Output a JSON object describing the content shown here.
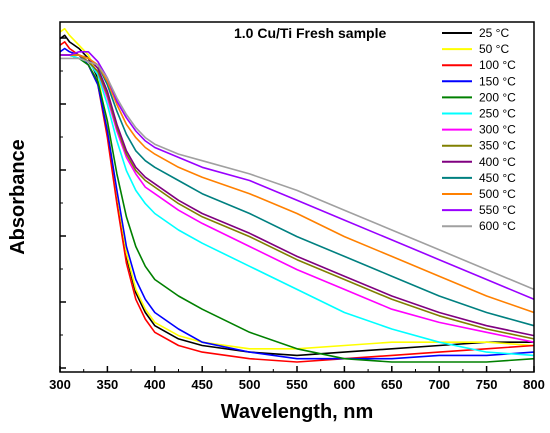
{
  "chart_data": {
    "type": "line",
    "title": "1.0 Cu/Ti Fresh sample",
    "xlabel": "Wavelength, nm",
    "ylabel": "Absorbance",
    "xlim": [
      300,
      800
    ],
    "ylim": [
      0,
      1
    ],
    "xticks": [
      300,
      350,
      400,
      450,
      500,
      550,
      600,
      650,
      700,
      750,
      800
    ],
    "y_tick_labels_shown": false,
    "grid": false,
    "legend_position": "top-right",
    "series": [
      {
        "name": "25 °C",
        "color": "#000000",
        "x": [
          300,
          305,
          310,
          320,
          330,
          340,
          350,
          360,
          370,
          380,
          390,
          400,
          425,
          450,
          500,
          550,
          600,
          650,
          700,
          750,
          800
        ],
        "y": [
          0.98,
          0.99,
          0.97,
          0.95,
          0.92,
          0.86,
          0.7,
          0.5,
          0.32,
          0.21,
          0.15,
          0.11,
          0.07,
          0.05,
          0.03,
          0.02,
          0.03,
          0.04,
          0.05,
          0.06,
          0.06
        ]
      },
      {
        "name": "50 °C",
        "color": "#ffff00",
        "x": [
          300,
          305,
          310,
          320,
          330,
          340,
          350,
          360,
          370,
          380,
          390,
          400,
          425,
          450,
          500,
          550,
          600,
          650,
          700,
          750,
          800
        ],
        "y": [
          1.0,
          1.01,
          0.99,
          0.96,
          0.93,
          0.87,
          0.71,
          0.51,
          0.33,
          0.22,
          0.16,
          0.12,
          0.08,
          0.06,
          0.04,
          0.04,
          0.05,
          0.06,
          0.06,
          0.06,
          0.05
        ]
      },
      {
        "name": "100 °C",
        "color": "#ff0000",
        "x": [
          300,
          305,
          310,
          320,
          330,
          340,
          350,
          360,
          370,
          380,
          390,
          400,
          425,
          450,
          500,
          550,
          600,
          650,
          700,
          750,
          800
        ],
        "y": [
          0.96,
          0.97,
          0.95,
          0.93,
          0.9,
          0.84,
          0.68,
          0.48,
          0.3,
          0.19,
          0.13,
          0.09,
          0.05,
          0.03,
          0.01,
          0.0,
          0.01,
          0.02,
          0.03,
          0.04,
          0.05
        ]
      },
      {
        "name": "150 °C",
        "color": "#0000ff",
        "x": [
          300,
          305,
          310,
          320,
          330,
          340,
          350,
          360,
          370,
          380,
          390,
          400,
          425,
          450,
          500,
          550,
          600,
          650,
          700,
          750,
          800
        ],
        "y": [
          0.94,
          0.95,
          0.94,
          0.93,
          0.9,
          0.84,
          0.7,
          0.52,
          0.35,
          0.25,
          0.19,
          0.15,
          0.1,
          0.06,
          0.03,
          0.01,
          0.01,
          0.01,
          0.02,
          0.02,
          0.03
        ]
      },
      {
        "name": "200 °C",
        "color": "#008000",
        "x": [
          300,
          310,
          320,
          330,
          340,
          350,
          360,
          370,
          380,
          390,
          400,
          425,
          450,
          500,
          550,
          600,
          650,
          700,
          750,
          800
        ],
        "y": [
          0.93,
          0.93,
          0.92,
          0.9,
          0.85,
          0.73,
          0.57,
          0.44,
          0.35,
          0.29,
          0.25,
          0.2,
          0.16,
          0.09,
          0.04,
          0.01,
          0.0,
          0.0,
          0.0,
          0.01
        ]
      },
      {
        "name": "250 °C",
        "color": "#00ffff",
        "x": [
          300,
          310,
          320,
          330,
          340,
          350,
          360,
          370,
          380,
          390,
          400,
          425,
          450,
          500,
          550,
          600,
          650,
          700,
          750,
          800
        ],
        "y": [
          0.93,
          0.93,
          0.92,
          0.91,
          0.87,
          0.78,
          0.67,
          0.58,
          0.52,
          0.48,
          0.45,
          0.4,
          0.36,
          0.29,
          0.22,
          0.15,
          0.1,
          0.06,
          0.03,
          0.02
        ]
      },
      {
        "name": "300 °C",
        "color": "#ff00ff",
        "x": [
          300,
          310,
          320,
          330,
          340,
          350,
          360,
          370,
          380,
          390,
          400,
          425,
          450,
          500,
          550,
          600,
          650,
          700,
          750,
          800
        ],
        "y": [
          0.93,
          0.93,
          0.93,
          0.91,
          0.88,
          0.8,
          0.7,
          0.62,
          0.57,
          0.53,
          0.51,
          0.46,
          0.42,
          0.35,
          0.28,
          0.22,
          0.16,
          0.12,
          0.09,
          0.06
        ]
      },
      {
        "name": "350 °C",
        "color": "#808000",
        "x": [
          300,
          310,
          320,
          330,
          340,
          350,
          360,
          370,
          380,
          390,
          400,
          425,
          450,
          500,
          550,
          600,
          650,
          700,
          750,
          800
        ],
        "y": [
          0.93,
          0.93,
          0.93,
          0.91,
          0.88,
          0.81,
          0.71,
          0.63,
          0.58,
          0.55,
          0.53,
          0.48,
          0.44,
          0.38,
          0.31,
          0.25,
          0.19,
          0.14,
          0.1,
          0.07
        ]
      },
      {
        "name": "400 °C",
        "color": "#800080",
        "x": [
          300,
          310,
          320,
          330,
          340,
          350,
          360,
          370,
          380,
          390,
          400,
          425,
          450,
          500,
          550,
          600,
          650,
          700,
          750,
          800
        ],
        "y": [
          0.93,
          0.93,
          0.93,
          0.92,
          0.89,
          0.82,
          0.72,
          0.64,
          0.59,
          0.56,
          0.54,
          0.49,
          0.45,
          0.39,
          0.32,
          0.26,
          0.2,
          0.15,
          0.11,
          0.08
        ]
      },
      {
        "name": "450 °C",
        "color": "#008080",
        "x": [
          300,
          310,
          320,
          330,
          340,
          350,
          360,
          370,
          380,
          390,
          400,
          425,
          450,
          500,
          550,
          600,
          650,
          700,
          750,
          800
        ],
        "y": [
          0.93,
          0.93,
          0.93,
          0.92,
          0.9,
          0.84,
          0.76,
          0.69,
          0.64,
          0.61,
          0.59,
          0.55,
          0.51,
          0.45,
          0.38,
          0.32,
          0.26,
          0.2,
          0.15,
          0.11
        ]
      },
      {
        "name": "500 °C",
        "color": "#ff8000",
        "x": [
          300,
          310,
          320,
          330,
          340,
          350,
          360,
          370,
          380,
          390,
          400,
          425,
          450,
          500,
          550,
          600,
          650,
          700,
          750,
          800
        ],
        "y": [
          0.93,
          0.93,
          0.93,
          0.92,
          0.9,
          0.85,
          0.78,
          0.72,
          0.68,
          0.65,
          0.63,
          0.59,
          0.56,
          0.51,
          0.45,
          0.38,
          0.32,
          0.26,
          0.2,
          0.15
        ]
      },
      {
        "name": "550 °C",
        "color": "#9900ff",
        "x": [
          300,
          310,
          320,
          330,
          340,
          350,
          360,
          370,
          380,
          390,
          400,
          425,
          450,
          500,
          550,
          600,
          650,
          700,
          750,
          800
        ],
        "y": [
          0.93,
          0.93,
          0.94,
          0.94,
          0.91,
          0.86,
          0.79,
          0.74,
          0.7,
          0.67,
          0.65,
          0.62,
          0.59,
          0.55,
          0.49,
          0.43,
          0.37,
          0.31,
          0.25,
          0.19
        ]
      },
      {
        "name": "600 °C",
        "color": "#a0a0a0",
        "x": [
          300,
          310,
          320,
          330,
          340,
          350,
          360,
          370,
          380,
          390,
          400,
          425,
          450,
          500,
          550,
          600,
          650,
          700,
          750,
          800
        ],
        "y": [
          0.92,
          0.92,
          0.92,
          0.91,
          0.9,
          0.86,
          0.8,
          0.75,
          0.71,
          0.68,
          0.66,
          0.63,
          0.61,
          0.57,
          0.52,
          0.46,
          0.4,
          0.34,
          0.28,
          0.22
        ]
      }
    ]
  }
}
